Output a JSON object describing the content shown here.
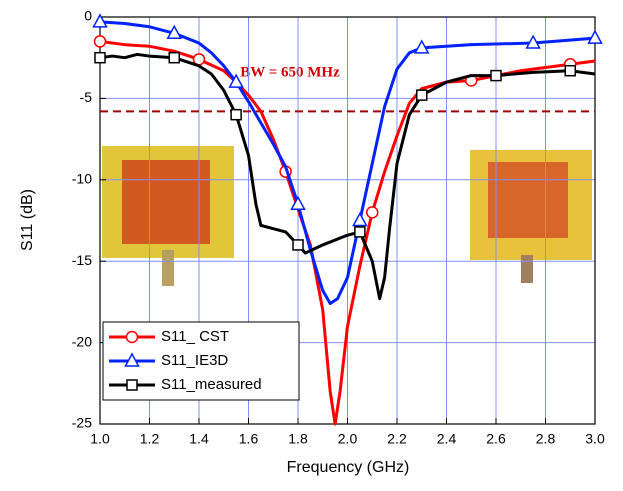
{
  "chart_data": {
    "type": "line",
    "x_label": "Frequency (GHz)",
    "y_label": "S11 (dB)",
    "annotation": "BW = 650 MHz",
    "reference_line": -5.8,
    "reference_color": "#a00000",
    "xlim": [
      1,
      3
    ],
    "ylim": [
      -25,
      0
    ],
    "xticks": [
      {
        "value": 1,
        "label": "1.0"
      },
      1.2,
      1.4,
      1.6,
      1.8,
      {
        "value": 2,
        "label": "2.0"
      },
      2.2,
      2.4,
      2.6,
      2.8,
      {
        "value": 3,
        "label": "3.0"
      }
    ],
    "yticks": [
      0,
      -5,
      -10,
      -15,
      -20,
      -25
    ],
    "grid": true,
    "legend": "lower left",
    "series": [
      {
        "name": "S11_ CST",
        "color": "#ff0000",
        "marker": "circle",
        "x": [
          1.0,
          1.1,
          1.2,
          1.3,
          1.4,
          1.5,
          1.55,
          1.6,
          1.65,
          1.7,
          1.75,
          1.8,
          1.85,
          1.9,
          1.93,
          1.95,
          1.97,
          2.0,
          2.05,
          2.1,
          2.15,
          2.2,
          2.25,
          2.3,
          2.4,
          2.5,
          2.6,
          2.7,
          2.8,
          2.9,
          3.0
        ],
        "values": [
          -1.5,
          -1.7,
          -1.8,
          -2.1,
          -2.6,
          -3.3,
          -4.0,
          -4.8,
          -5.8,
          -7.5,
          -9.5,
          -11.8,
          -14,
          -18,
          -23,
          -25,
          -23,
          -19,
          -15.3,
          -12,
          -9.5,
          -7.3,
          -5.3,
          -4.4,
          -4.0,
          -3.9,
          -3.6,
          -3.3,
          -3.1,
          -2.9,
          -2.7
        ]
      },
      {
        "name": "S11_IE3D",
        "color": "#0022ff",
        "marker": "triangle",
        "x": [
          1.0,
          1.1,
          1.2,
          1.3,
          1.4,
          1.45,
          1.5,
          1.55,
          1.6,
          1.65,
          1.7,
          1.75,
          1.8,
          1.85,
          1.9,
          1.93,
          1.96,
          2.0,
          2.05,
          2.1,
          2.15,
          2.2,
          2.25,
          2.3,
          2.5,
          2.75,
          3.0
        ],
        "values": [
          -0.3,
          -0.4,
          -0.6,
          -1.0,
          -1.6,
          -2.2,
          -3.0,
          -4.0,
          -5.2,
          -6.5,
          -7.8,
          -9.2,
          -11.5,
          -14.3,
          -16.8,
          -17.6,
          -17.3,
          -16,
          -12.5,
          -9,
          -5.5,
          -3.2,
          -2.2,
          -1.9,
          -1.7,
          -1.6,
          -1.3
        ]
      },
      {
        "name": "S11_measured",
        "color": "#000000",
        "marker": "square",
        "x": [
          1.0,
          1.05,
          1.1,
          1.15,
          1.2,
          1.3,
          1.4,
          1.45,
          1.5,
          1.55,
          1.6,
          1.63,
          1.65,
          1.7,
          1.75,
          1.8,
          1.83,
          1.9,
          2.0,
          2.05,
          2.1,
          2.13,
          2.15,
          2.17,
          2.2,
          2.25,
          2.3,
          2.4,
          2.5,
          2.6,
          2.75,
          2.9,
          3.0
        ],
        "values": [
          -2.5,
          -2.4,
          -2.5,
          -2.3,
          -2.4,
          -2.5,
          -3.0,
          -3.5,
          -4.5,
          -6.0,
          -8.5,
          -11.5,
          -12.8,
          -13.0,
          -13.2,
          -14.0,
          -14.5,
          -14.0,
          -13.4,
          -13.2,
          -15.0,
          -17.3,
          -16.0,
          -13.0,
          -9.0,
          -6.0,
          -4.8,
          -4.0,
          -3.6,
          -3.6,
          -3.4,
          -3.3,
          -3.5
        ]
      }
    ]
  }
}
